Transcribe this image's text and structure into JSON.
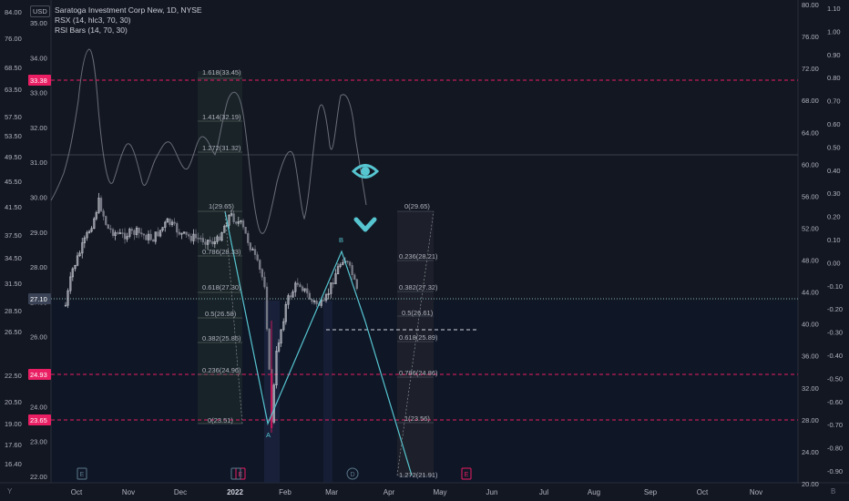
{
  "legend": {
    "title": "Saratoga Investment Corp New, 1D, NYSE",
    "line2": "RSX (14, hlc3, 70, 30)",
    "line3": "RSI Bars (14, 70, 30)"
  },
  "currency": "USD",
  "corner_left": "Y",
  "corner_right": "B",
  "axis_left_outer": [
    "84.00",
    "76.00",
    "68.50",
    "63.50",
    "57.50",
    "53.50",
    "49.50",
    "45.50",
    "41.50",
    "37.50",
    "34.50",
    "31.50",
    "28.50",
    "26.50",
    "22.50",
    "20.50",
    "19.00",
    "17.60",
    "16.40"
  ],
  "axis_left_inner": [
    "35.00",
    "34.00",
    "33.00",
    "32.00",
    "31.00",
    "30.00",
    "29.00",
    "28.00",
    "27.00",
    "26.00",
    "25.00",
    "24.00",
    "23.00",
    "22.00"
  ],
  "axis_right_inner": [
    "80.00",
    "76.00",
    "72.00",
    "68.00",
    "64.00",
    "60.00",
    "56.00",
    "52.00",
    "48.00",
    "44.00",
    "40.00",
    "36.00",
    "32.00",
    "28.00",
    "24.00",
    "20.00"
  ],
  "axis_right_outer": [
    "1.10",
    "1.00",
    "0.90",
    "0.80",
    "0.70",
    "0.60",
    "0.50",
    "0.40",
    "0.30",
    "0.20",
    "0.10",
    "0.00",
    "-0.10",
    "-0.20",
    "-0.30",
    "-0.40",
    "-0.50",
    "-0.60",
    "-0.70",
    "-0.80",
    "-0.90"
  ],
  "x_labels": [
    "Oct",
    "Nov",
    "Dec",
    "2022",
    "Feb",
    "Mar",
    "Apr",
    "May",
    "Jun",
    "Jul",
    "Aug",
    "Sep",
    "Oct",
    "Nov"
  ],
  "price_tags": [
    {
      "label": "33.38",
      "color": "#e91e63"
    },
    {
      "label": "27.10",
      "color": "#3a4255"
    },
    {
      "label": "24.93",
      "color": "#e91e63"
    },
    {
      "label": "23.65",
      "color": "#e91e63"
    }
  ],
  "fib_left": [
    "1.618(33.45)",
    "1.414(32.19)",
    "1.272(31.32)",
    "1(29.65)",
    "0.786(28.33)",
    "0.618(27.30)",
    "0.5(26.58)",
    "0.382(25.85)",
    "0.236(24.96)",
    "0(23.51)"
  ],
  "fib_right": [
    "0(29.65)",
    "0.236(28.21)",
    "0.382(27.32)",
    "0.5(26.61)",
    "0.618(25.89)",
    "0.786(24.86)",
    "1(23.56)",
    "1.272(21.91)"
  ],
  "wave_labels": {
    "a": "A",
    "b": "B"
  },
  "event_markers": [
    "E",
    "E",
    "D",
    "E"
  ],
  "colors": {
    "background": "#131722",
    "accent_cyan": "#56c5d0",
    "magenta": "#e91e63",
    "up": "#d1d4dc",
    "down": "#787b86"
  },
  "chart_data": {
    "type": "candlestick",
    "symbol": "Saratoga Investment Corp New",
    "interval": "1D",
    "exchange": "NYSE",
    "last_price": 27.1,
    "price_range": [
      22.0,
      35.3
    ],
    "close_path": [
      {
        "date": "2021-09-24",
        "close": 26.9
      },
      {
        "date": "2021-09-28",
        "close": 27.9
      },
      {
        "date": "2021-10-05",
        "close": 28.7
      },
      {
        "date": "2021-10-11",
        "close": 29.4
      },
      {
        "date": "2021-10-14",
        "close": 29.9
      },
      {
        "date": "2021-10-19",
        "close": 29.1
      },
      {
        "date": "2021-10-27",
        "close": 28.9
      },
      {
        "date": "2021-11-05",
        "close": 29.0
      },
      {
        "date": "2021-11-15",
        "close": 28.8
      },
      {
        "date": "2021-11-24",
        "close": 29.3
      },
      {
        "date": "2021-12-03",
        "close": 28.9
      },
      {
        "date": "2021-12-14",
        "close": 28.8
      },
      {
        "date": "2021-12-23",
        "close": 28.7
      },
      {
        "date": "2021-12-31",
        "close": 29.5
      },
      {
        "date": "2022-01-07",
        "close": 29.2
      },
      {
        "date": "2022-01-14",
        "close": 28.4
      },
      {
        "date": "2022-01-21",
        "close": 27.5
      },
      {
        "date": "2022-01-25",
        "close": 23.6
      },
      {
        "date": "2022-01-28",
        "close": 25.6
      },
      {
        "date": "2022-02-03",
        "close": 27.0
      },
      {
        "date": "2022-02-10",
        "close": 27.6
      },
      {
        "date": "2022-02-18",
        "close": 27.0
      },
      {
        "date": "2022-02-25",
        "close": 26.9
      },
      {
        "date": "2022-03-04",
        "close": 27.8
      },
      {
        "date": "2022-03-09",
        "close": 28.3
      },
      {
        "date": "2022-03-14",
        "close": 27.8
      },
      {
        "date": "2022-03-18",
        "close": 27.1
      }
    ],
    "horizontal_levels": [
      33.38,
      24.93,
      23.65,
      26.6
    ]
  }
}
